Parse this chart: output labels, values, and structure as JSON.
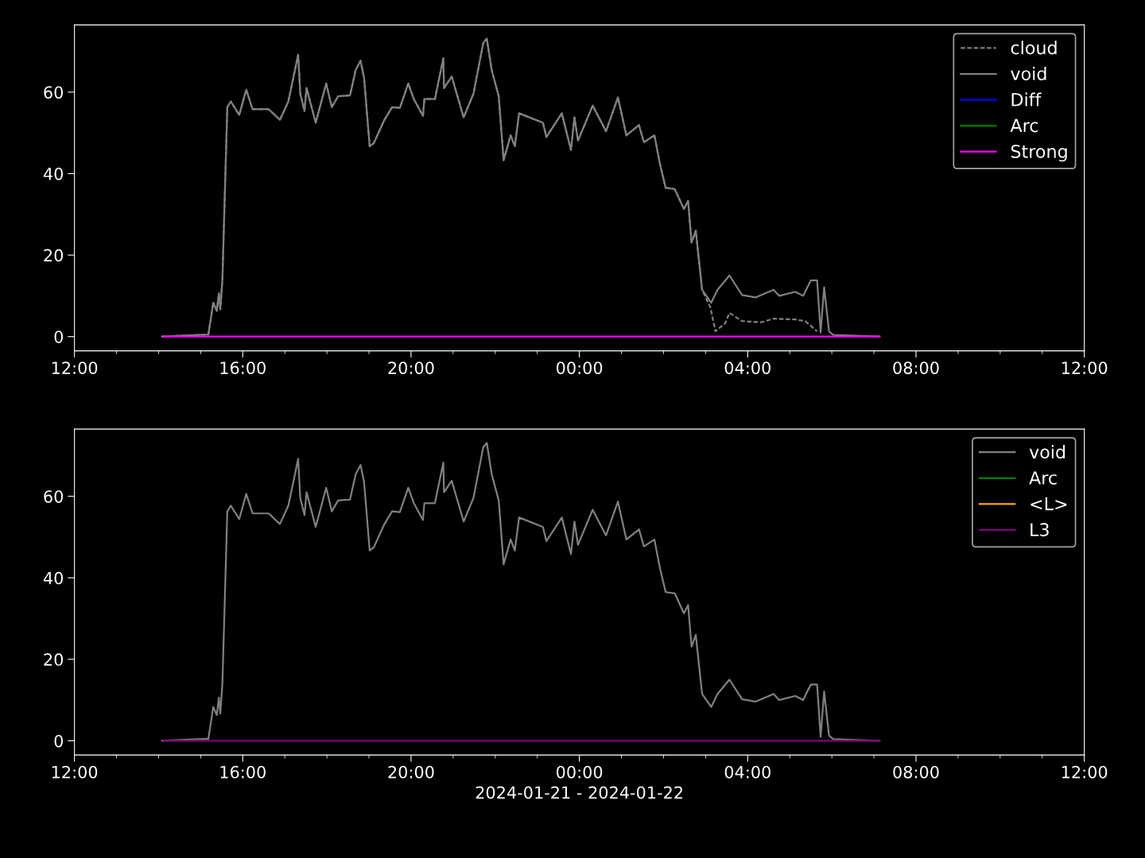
{
  "chart_data": [
    {
      "type": "line",
      "xlim": [
        "2024-01-21T12:00",
        "2024-01-22T12:00"
      ],
      "ylim": [
        -3.5,
        76.5
      ],
      "xticks": [
        {
          "value": "2024-01-21T12:00",
          "label": "12:00"
        },
        {
          "value": "2024-01-21T16:00",
          "label": "16:00"
        },
        {
          "value": "2024-01-21T20:00",
          "label": "20:00"
        },
        {
          "value": "2024-01-22T00:00",
          "label": "00:00"
        },
        {
          "value": "2024-01-22T04:00",
          "label": "04:00"
        },
        {
          "value": "2024-01-22T08:00",
          "label": "08:00"
        },
        {
          "value": "2024-01-22T12:00",
          "label": "12:00"
        }
      ],
      "yticks": [
        0,
        20,
        40,
        60
      ],
      "legend": "top right",
      "series": [
        {
          "name": "cloud",
          "color": "#808080",
          "line_style": "dashed",
          "x": [
            "2024-01-21T14:05",
            "2024-01-21T15:11",
            "2024-01-21T15:18",
            "2024-01-21T15:23",
            "2024-01-21T15:26",
            "2024-01-21T15:28",
            "2024-01-21T15:31",
            "2024-01-21T15:38",
            "2024-01-21T15:43",
            "2024-01-21T15:55",
            "2024-01-21T16:05",
            "2024-01-21T16:14",
            "2024-01-21T16:37",
            "2024-01-21T16:53",
            "2024-01-21T17:05",
            "2024-01-21T17:14",
            "2024-01-21T17:19",
            "2024-01-21T17:22",
            "2024-01-21T17:28",
            "2024-01-21T17:31",
            "2024-01-21T17:44",
            "2024-01-21T17:59",
            "2024-01-21T18:07",
            "2024-01-21T18:16",
            "2024-01-21T18:33",
            "2024-01-21T18:41",
            "2024-01-21T18:48",
            "2024-01-21T18:53",
            "2024-01-21T19:01",
            "2024-01-21T19:07",
            "2024-01-21T19:22",
            "2024-01-21T19:33",
            "2024-01-21T19:44",
            "2024-01-21T19:56",
            "2024-01-21T20:04",
            "2024-01-21T20:17",
            "2024-01-21T20:19",
            "2024-01-21T20:34",
            "2024-01-21T20:46",
            "2024-01-21T20:47",
            "2024-01-21T20:58",
            "2024-01-21T21:15",
            "2024-01-21T21:29",
            "2024-01-21T21:43",
            "2024-01-21T21:48",
            "2024-01-21T21:55",
            "2024-01-21T22:05",
            "2024-01-21T22:12",
            "2024-01-21T22:22",
            "2024-01-21T22:28",
            "2024-01-21T22:34",
            "2024-01-21T23:08",
            "2024-01-21T23:13",
            "2024-01-21T23:35",
            "2024-01-21T23:48",
            "2024-01-21T23:53",
            "2024-01-21T23:58",
            "2024-01-22T00:19",
            "2024-01-22T00:38",
            "2024-01-22T00:55",
            "2024-01-22T01:07",
            "2024-01-22T01:25",
            "2024-01-22T01:32",
            "2024-01-22T01:47",
            "2024-01-22T01:55",
            "2024-01-22T02:03",
            "2024-01-22T02:16",
            "2024-01-22T02:29",
            "2024-01-22T02:35",
            "2024-01-22T02:40",
            "2024-01-22T02:46",
            "2024-01-22T02:55",
            "2024-01-22T03:07",
            "2024-01-22T03:14",
            "2024-01-22T03:28",
            "2024-01-22T03:34",
            "2024-01-22T03:52",
            "2024-01-22T04:19",
            "2024-01-22T04:37",
            "2024-01-22T05:08",
            "2024-01-22T05:22",
            "2024-01-22T05:39"
          ],
          "values": [
            0,
            0.5,
            8.3,
            6.3,
            10.6,
            6.7,
            14,
            56.3,
            57.7,
            54.4,
            60.6,
            55.8,
            55.8,
            53.2,
            57.7,
            65,
            69.2,
            59.6,
            55.4,
            61,
            52.5,
            62.1,
            56.3,
            59,
            59.2,
            65.4,
            67.7,
            63.5,
            46.7,
            47.5,
            53.2,
            56.3,
            56.1,
            62.1,
            58.3,
            54.2,
            58.3,
            58.3,
            68.3,
            61,
            63.8,
            53.8,
            59.6,
            72.1,
            73.1,
            65.4,
            59,
            43.3,
            49.4,
            46.7,
            54.8,
            52.5,
            49,
            54.8,
            45.8,
            53.8,
            48.1,
            56.7,
            50.4,
            58.7,
            49.4,
            51.9,
            47.7,
            49.4,
            42.3,
            36.5,
            36.2,
            31.3,
            33.3,
            23.1,
            26,
            11.5,
            7.1,
            1.3,
            3.3,
            5.8,
            3.8,
            3.5,
            4.4,
            4.2,
            3.8,
            1.3
          ]
        },
        {
          "name": "void",
          "color": "#808080",
          "line_style": "solid",
          "x": [
            "2024-01-21T14:05",
            "2024-01-21T15:11",
            "2024-01-21T15:18",
            "2024-01-21T15:23",
            "2024-01-21T15:26",
            "2024-01-21T15:28",
            "2024-01-21T15:31",
            "2024-01-21T15:38",
            "2024-01-21T15:43",
            "2024-01-21T15:55",
            "2024-01-21T16:05",
            "2024-01-21T16:14",
            "2024-01-21T16:37",
            "2024-01-21T16:53",
            "2024-01-21T17:05",
            "2024-01-21T17:14",
            "2024-01-21T17:19",
            "2024-01-21T17:22",
            "2024-01-21T17:28",
            "2024-01-21T17:31",
            "2024-01-21T17:44",
            "2024-01-21T17:59",
            "2024-01-21T18:07",
            "2024-01-21T18:16",
            "2024-01-21T18:33",
            "2024-01-21T18:41",
            "2024-01-21T18:48",
            "2024-01-21T18:53",
            "2024-01-21T19:01",
            "2024-01-21T19:07",
            "2024-01-21T19:22",
            "2024-01-21T19:33",
            "2024-01-21T19:44",
            "2024-01-21T19:56",
            "2024-01-21T20:04",
            "2024-01-21T20:17",
            "2024-01-21T20:19",
            "2024-01-21T20:34",
            "2024-01-21T20:46",
            "2024-01-21T20:47",
            "2024-01-21T20:58",
            "2024-01-21T21:15",
            "2024-01-21T21:29",
            "2024-01-21T21:43",
            "2024-01-21T21:48",
            "2024-01-21T21:55",
            "2024-01-21T22:05",
            "2024-01-21T22:12",
            "2024-01-21T22:22",
            "2024-01-21T22:28",
            "2024-01-21T22:34",
            "2024-01-21T23:08",
            "2024-01-21T23:13",
            "2024-01-21T23:35",
            "2024-01-21T23:48",
            "2024-01-21T23:53",
            "2024-01-21T23:58",
            "2024-01-22T00:19",
            "2024-01-22T00:38",
            "2024-01-22T00:55",
            "2024-01-22T01:07",
            "2024-01-22T01:25",
            "2024-01-22T01:32",
            "2024-01-22T01:47",
            "2024-01-22T01:55",
            "2024-01-22T02:03",
            "2024-01-22T02:16",
            "2024-01-22T02:29",
            "2024-01-22T02:35",
            "2024-01-22T02:40",
            "2024-01-22T02:46",
            "2024-01-22T02:55",
            "2024-01-22T03:08",
            "2024-01-22T03:17",
            "2024-01-22T03:34",
            "2024-01-22T03:52",
            "2024-01-22T04:11",
            "2024-01-22T04:37",
            "2024-01-22T04:45",
            "2024-01-22T05:08",
            "2024-01-22T05:19",
            "2024-01-22T05:30",
            "2024-01-22T05:39",
            "2024-01-22T05:44",
            "2024-01-22T05:49",
            "2024-01-22T05:56",
            "2024-01-22T06:02",
            "2024-01-22T07:08"
          ],
          "values": [
            0,
            0.5,
            8.3,
            6.3,
            10.6,
            6.7,
            14,
            56.3,
            57.7,
            54.4,
            60.6,
            55.8,
            55.8,
            53.2,
            57.7,
            65,
            69.2,
            59.6,
            55.4,
            61,
            52.5,
            62.1,
            56.3,
            59,
            59.2,
            65.4,
            67.7,
            63.5,
            46.7,
            47.5,
            53.2,
            56.3,
            56.1,
            62.1,
            58.3,
            54.2,
            58.3,
            58.3,
            68.3,
            61,
            63.8,
            53.8,
            59.6,
            72.1,
            73.1,
            65.4,
            59,
            43.3,
            49.4,
            46.7,
            54.8,
            52.5,
            49,
            54.8,
            45.8,
            53.8,
            48.1,
            56.7,
            50.4,
            58.7,
            49.4,
            51.9,
            47.7,
            49.4,
            42.3,
            36.5,
            36.2,
            31.3,
            33.3,
            23.1,
            26,
            11.5,
            8.3,
            11.5,
            15,
            10.2,
            9.6,
            11.5,
            10,
            11,
            10,
            13.8,
            13.8,
            1,
            12.1,
            1.3,
            0.4,
            0
          ]
        },
        {
          "name": "Diff",
          "color": "#0000ff",
          "line_style": "solid"
        },
        {
          "name": "Arc",
          "color": "#008000",
          "line_style": "solid"
        },
        {
          "name": "Strong",
          "color": "#ff00ff",
          "line_style": "solid",
          "x": [
            "2024-01-21T14:07",
            "2024-01-22T07:08"
          ],
          "values": [
            0,
            0
          ]
        }
      ]
    },
    {
      "type": "line",
      "xlim": [
        "2024-01-21T12:00",
        "2024-01-22T12:00"
      ],
      "ylim": [
        -3.5,
        76.5
      ],
      "xlabel": "2024-01-21 - 2024-01-22",
      "xticks": [
        {
          "value": "2024-01-21T12:00",
          "label": "12:00"
        },
        {
          "value": "2024-01-21T16:00",
          "label": "16:00"
        },
        {
          "value": "2024-01-21T20:00",
          "label": "20:00"
        },
        {
          "value": "2024-01-22T00:00",
          "label": "00:00"
        },
        {
          "value": "2024-01-22T04:00",
          "label": "04:00"
        },
        {
          "value": "2024-01-22T08:00",
          "label": "08:00"
        },
        {
          "value": "2024-01-22T12:00",
          "label": "12:00"
        }
      ],
      "yticks": [
        0,
        20,
        40,
        60
      ],
      "legend": "top right",
      "series": [
        {
          "name": "void",
          "color": "#808080",
          "line_style": "solid",
          "x": [
            "2024-01-21T14:05",
            "2024-01-21T15:11",
            "2024-01-21T15:18",
            "2024-01-21T15:23",
            "2024-01-21T15:26",
            "2024-01-21T15:28",
            "2024-01-21T15:31",
            "2024-01-21T15:38",
            "2024-01-21T15:43",
            "2024-01-21T15:55",
            "2024-01-21T16:05",
            "2024-01-21T16:14",
            "2024-01-21T16:37",
            "2024-01-21T16:53",
            "2024-01-21T17:05",
            "2024-01-21T17:14",
            "2024-01-21T17:19",
            "2024-01-21T17:22",
            "2024-01-21T17:28",
            "2024-01-21T17:31",
            "2024-01-21T17:44",
            "2024-01-21T17:59",
            "2024-01-21T18:07",
            "2024-01-21T18:16",
            "2024-01-21T18:33",
            "2024-01-21T18:41",
            "2024-01-21T18:48",
            "2024-01-21T18:53",
            "2024-01-21T19:01",
            "2024-01-21T19:07",
            "2024-01-21T19:22",
            "2024-01-21T19:33",
            "2024-01-21T19:44",
            "2024-01-21T19:56",
            "2024-01-21T20:04",
            "2024-01-21T20:17",
            "2024-01-21T20:19",
            "2024-01-21T20:34",
            "2024-01-21T20:46",
            "2024-01-21T20:47",
            "2024-01-21T20:58",
            "2024-01-21T21:15",
            "2024-01-21T21:29",
            "2024-01-21T21:43",
            "2024-01-21T21:48",
            "2024-01-21T21:55",
            "2024-01-21T22:05",
            "2024-01-21T22:12",
            "2024-01-21T22:22",
            "2024-01-21T22:28",
            "2024-01-21T22:34",
            "2024-01-21T23:08",
            "2024-01-21T23:13",
            "2024-01-21T23:35",
            "2024-01-21T23:48",
            "2024-01-21T23:53",
            "2024-01-21T23:58",
            "2024-01-22T00:19",
            "2024-01-22T00:38",
            "2024-01-22T00:55",
            "2024-01-22T01:07",
            "2024-01-22T01:25",
            "2024-01-22T01:32",
            "2024-01-22T01:47",
            "2024-01-22T01:55",
            "2024-01-22T02:03",
            "2024-01-22T02:16",
            "2024-01-22T02:29",
            "2024-01-22T02:35",
            "2024-01-22T02:40",
            "2024-01-22T02:46",
            "2024-01-22T02:55",
            "2024-01-22T03:08",
            "2024-01-22T03:17",
            "2024-01-22T03:34",
            "2024-01-22T03:52",
            "2024-01-22T04:11",
            "2024-01-22T04:37",
            "2024-01-22T04:45",
            "2024-01-22T05:08",
            "2024-01-22T05:19",
            "2024-01-22T05:30",
            "2024-01-22T05:39",
            "2024-01-22T05:44",
            "2024-01-22T05:49",
            "2024-01-22T05:56",
            "2024-01-22T06:02",
            "2024-01-22T07:08"
          ],
          "values": [
            0,
            0.5,
            8.3,
            6.3,
            10.6,
            6.7,
            14,
            56.3,
            57.7,
            54.4,
            60.6,
            55.8,
            55.8,
            53.2,
            57.7,
            65,
            69.2,
            59.6,
            55.4,
            61,
            52.5,
            62.1,
            56.3,
            59,
            59.2,
            65.4,
            67.7,
            63.5,
            46.7,
            47.5,
            53.2,
            56.3,
            56.1,
            62.1,
            58.3,
            54.2,
            58.3,
            58.3,
            68.3,
            61,
            63.8,
            53.8,
            59.6,
            72.1,
            73.1,
            65.4,
            59,
            43.3,
            49.4,
            46.7,
            54.8,
            52.5,
            49,
            54.8,
            45.8,
            53.8,
            48.1,
            56.7,
            50.4,
            58.7,
            49.4,
            51.9,
            47.7,
            49.4,
            42.3,
            36.5,
            36.2,
            31.3,
            33.3,
            23.1,
            26,
            11.5,
            8.3,
            11.5,
            15,
            10.2,
            9.6,
            11.5,
            10,
            11,
            10,
            13.8,
            13.8,
            1,
            12.1,
            1.3,
            0.4,
            0
          ]
        },
        {
          "name": "Arc",
          "color": "#008000",
          "line_style": "solid"
        },
        {
          "name": "<L>",
          "color": "#ffa500",
          "line_style": "solid"
        },
        {
          "name": "L3",
          "color": "#800080",
          "line_style": "solid",
          "x": [
            "2024-01-21T14:07",
            "2024-01-22T07:08"
          ],
          "values": [
            0,
            0
          ]
        }
      ]
    }
  ]
}
